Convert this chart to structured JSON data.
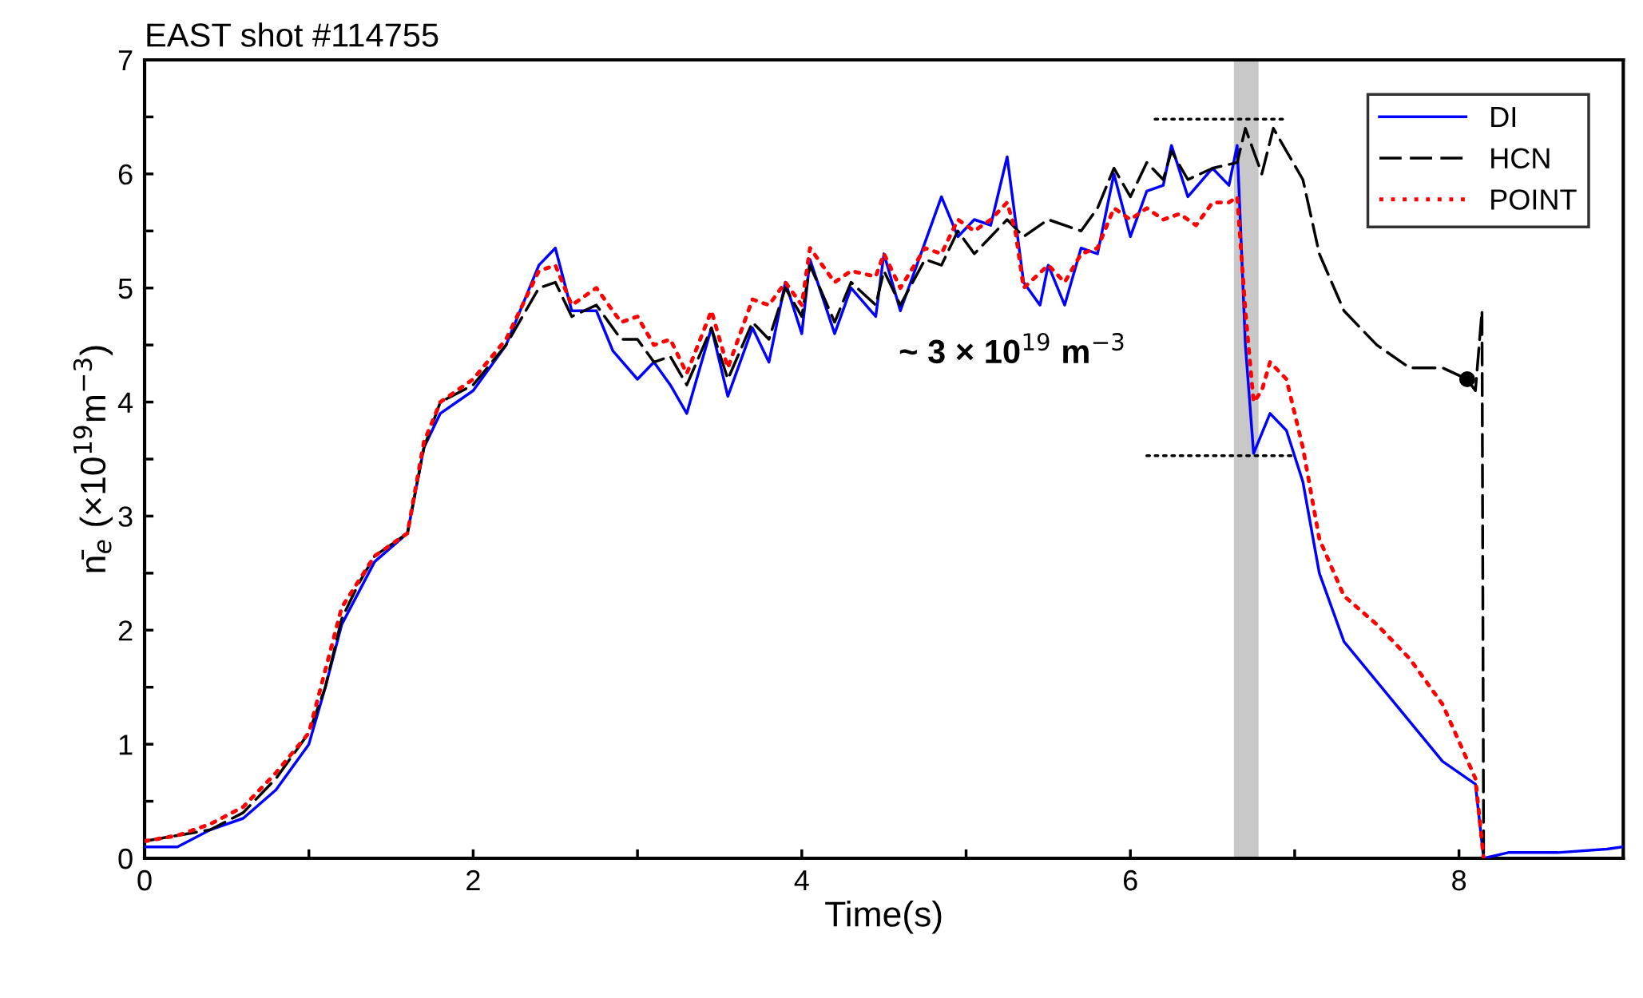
{
  "chart_data": {
    "type": "line",
    "title": "EAST shot #114755",
    "xlabel": "Time(s)",
    "ylabel": "n̄$_{e}$ (×10$^{19}$m$^{−3}$)",
    "annotations": [
      "~ 3 × 10$^{19}$ m$^{−3}$"
    ],
    "xlim": [
      0,
      9
    ],
    "ylim": [
      0,
      7
    ],
    "xticks": [
      0,
      {
        "value": 1,
        "label": null
      },
      2,
      {
        "value": 3,
        "label": null
      },
      4,
      {
        "value": 5,
        "label": null
      },
      6,
      {
        "value": 7,
        "label": null
      },
      8,
      {
        "value": 9,
        "label": null
      }
    ],
    "yticks": [
      0,
      {
        "value": 0.5,
        "label": null
      },
      1,
      {
        "value": 1.5,
        "label": null
      },
      2,
      {
        "value": 2.5,
        "label": null
      },
      3,
      {
        "value": 3.5,
        "label": null
      },
      4,
      {
        "value": 4.5,
        "label": null
      },
      5,
      {
        "value": 5.5,
        "label": null
      },
      6,
      {
        "value": 6.5,
        "label": null
      },
      7
    ],
    "grid": false,
    "legend": "top right",
    "bands": [
      {
        "axis": "x",
        "from": 6.63,
        "to": 6.78,
        "color": "#c8c8c8"
      }
    ],
    "series": [
      {
        "name": "DI",
        "color": "#0000ff",
        "line_style": "solid",
        "x": [
          0,
          0.2,
          0.4,
          0.6,
          0.8,
          1.0,
          1.1,
          1.2,
          1.4,
          1.6,
          1.7,
          1.8,
          2.0,
          2.2,
          2.4,
          2.5,
          2.6,
          2.75,
          2.85,
          3.0,
          3.1,
          3.2,
          3.3,
          3.45,
          3.55,
          3.7,
          3.8,
          3.9,
          4.0,
          4.05,
          4.2,
          4.3,
          4.45,
          4.5,
          4.6,
          4.75,
          4.85,
          4.95,
          5.05,
          5.15,
          5.25,
          5.3,
          5.35,
          5.45,
          5.5,
          5.6,
          5.7,
          5.8,
          5.9,
          6.0,
          6.1,
          6.2,
          6.25,
          6.35,
          6.5,
          6.6,
          6.65,
          6.7,
          6.75,
          6.85,
          6.95,
          7.05,
          7.15,
          7.3,
          7.5,
          7.7,
          7.9,
          8.1,
          8.15,
          8.3,
          8.6,
          8.9,
          9.0
        ],
        "values": [
          0.1,
          0.1,
          0.25,
          0.35,
          0.6,
          1.0,
          1.5,
          2.05,
          2.6,
          2.85,
          3.6,
          3.9,
          4.1,
          4.5,
          5.2,
          5.35,
          4.8,
          4.8,
          4.45,
          4.2,
          4.35,
          4.15,
          3.9,
          4.65,
          4.05,
          4.65,
          4.35,
          5.05,
          4.6,
          5.25,
          4.6,
          5.0,
          4.75,
          5.3,
          4.8,
          5.4,
          5.8,
          5.45,
          5.6,
          5.55,
          6.15,
          5.6,
          5.05,
          4.85,
          5.2,
          4.85,
          5.35,
          5.3,
          6.0,
          5.45,
          5.85,
          5.9,
          6.25,
          5.8,
          6.05,
          5.9,
          6.25,
          4.5,
          3.55,
          3.9,
          3.75,
          3.3,
          2.5,
          1.9,
          1.55,
          1.2,
          0.85,
          0.65,
          0.0,
          0.05,
          0.05,
          0.08,
          0.1
        ]
      },
      {
        "name": "HCN",
        "color": "#000000",
        "line_style": "dashed",
        "x": [
          0,
          0.2,
          0.4,
          0.6,
          0.8,
          1.0,
          1.1,
          1.2,
          1.3,
          1.4,
          1.6,
          1.7,
          1.8,
          2.0,
          2.2,
          2.4,
          2.5,
          2.6,
          2.75,
          2.9,
          3.0,
          3.1,
          3.2,
          3.3,
          3.45,
          3.55,
          3.7,
          3.8,
          3.9,
          4.0,
          4.05,
          4.2,
          4.3,
          4.45,
          4.5,
          4.6,
          4.75,
          4.85,
          4.95,
          5.05,
          5.15,
          5.25,
          5.35,
          5.5,
          5.7,
          5.8,
          5.9,
          6.0,
          6.1,
          6.2,
          6.25,
          6.35,
          6.5,
          6.65,
          6.7,
          6.75,
          6.8,
          6.87,
          6.95,
          7.05,
          7.15,
          7.3,
          7.5,
          7.7,
          7.9,
          8.05,
          8.1,
          8.14,
          8.15
        ],
        "values": [
          0.15,
          0.2,
          0.25,
          0.4,
          0.7,
          1.1,
          1.5,
          2.1,
          2.4,
          2.65,
          2.85,
          3.6,
          4.0,
          4.15,
          4.5,
          5.0,
          5.05,
          4.75,
          4.85,
          4.55,
          4.55,
          4.35,
          4.4,
          4.15,
          4.65,
          4.2,
          4.7,
          4.55,
          5.0,
          4.75,
          5.2,
          4.7,
          5.05,
          4.85,
          5.15,
          4.85,
          5.25,
          5.2,
          5.5,
          5.3,
          5.45,
          5.6,
          5.45,
          5.6,
          5.5,
          5.7,
          6.05,
          5.8,
          6.1,
          5.95,
          6.2,
          5.95,
          6.05,
          6.1,
          6.4,
          6.2,
          6.0,
          6.4,
          6.2,
          5.95,
          5.3,
          4.8,
          4.5,
          4.3,
          4.3,
          4.2,
          4.1,
          4.8,
          0.0
        ]
      },
      {
        "name": "POINT",
        "color": "#ff0000",
        "line_style": "dotted",
        "x": [
          0,
          0.2,
          0.4,
          0.6,
          0.8,
          1.0,
          1.1,
          1.2,
          1.4,
          1.6,
          1.7,
          1.8,
          2.0,
          2.2,
          2.4,
          2.5,
          2.6,
          2.75,
          2.9,
          3.0,
          3.1,
          3.2,
          3.3,
          3.45,
          3.55,
          3.7,
          3.8,
          3.9,
          4.0,
          4.05,
          4.2,
          4.3,
          4.45,
          4.5,
          4.6,
          4.75,
          4.85,
          4.95,
          5.05,
          5.15,
          5.25,
          5.3,
          5.35,
          5.5,
          5.6,
          5.7,
          5.8,
          5.9,
          6.0,
          6.1,
          6.2,
          6.3,
          6.4,
          6.5,
          6.6,
          6.65,
          6.7,
          6.75,
          6.8,
          6.85,
          6.95,
          7.05,
          7.15,
          7.3,
          7.5,
          7.7,
          7.9,
          8.1,
          8.15
        ],
        "values": [
          0.15,
          0.2,
          0.3,
          0.45,
          0.75,
          1.1,
          1.65,
          2.2,
          2.65,
          2.85,
          3.65,
          4.0,
          4.2,
          4.55,
          5.15,
          5.2,
          4.85,
          5.0,
          4.7,
          4.75,
          4.5,
          4.55,
          4.25,
          4.8,
          4.3,
          4.9,
          4.85,
          5.05,
          4.85,
          5.35,
          5.05,
          5.15,
          5.1,
          5.3,
          5.0,
          5.35,
          5.3,
          5.6,
          5.5,
          5.6,
          5.75,
          5.5,
          5.0,
          5.2,
          5.05,
          5.3,
          5.35,
          5.7,
          5.6,
          5.7,
          5.6,
          5.65,
          5.55,
          5.75,
          5.75,
          5.8,
          4.8,
          4.0,
          4.1,
          4.35,
          4.2,
          3.6,
          2.8,
          2.3,
          2.05,
          1.75,
          1.35,
          0.7,
          0.0
        ]
      },
      {
        "type": "line",
        "color": "#000000",
        "line_style": "dotted",
        "x": [
          6.15,
          6.95
        ],
        "values": [
          6.48,
          6.48
        ]
      },
      {
        "type": "line",
        "color": "#000000",
        "line_style": "dotted",
        "x": [
          6.1,
          7.0
        ],
        "values": [
          3.53,
          3.53
        ]
      },
      {
        "type": "scatter",
        "color": "#000000",
        "marker": "circle",
        "x": [
          8.05
        ],
        "values": [
          4.2
        ]
      }
    ]
  }
}
